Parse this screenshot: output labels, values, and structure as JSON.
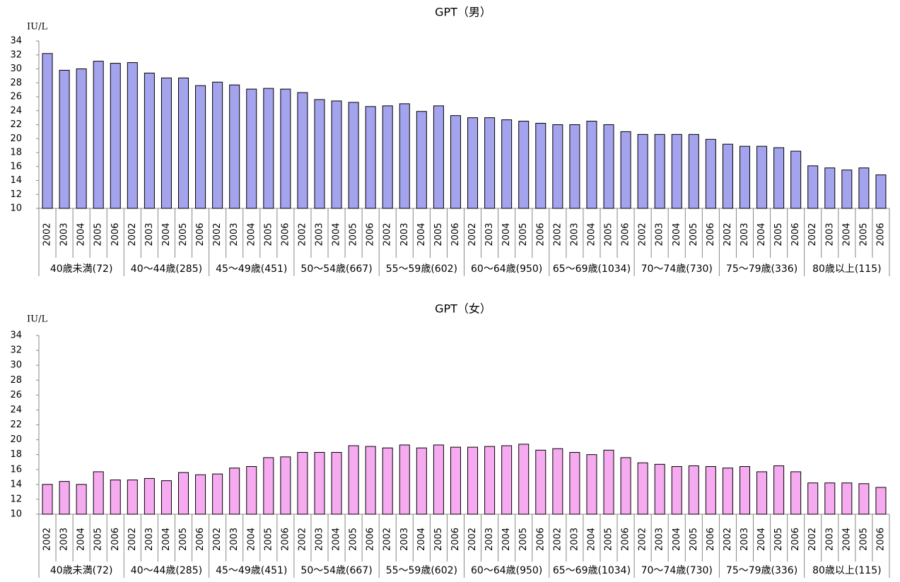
{
  "chart_data": [
    {
      "type": "bar",
      "title": "GPT（男）",
      "y_label": "IU/L",
      "categories": [
        "2002",
        "2003",
        "2004",
        "2005",
        "2006",
        "2002",
        "2003",
        "2004",
        "2005",
        "2006",
        "2002",
        "2003",
        "2004",
        "2005",
        "2006",
        "2002",
        "2003",
        "2004",
        "2005",
        "2006",
        "2002",
        "2003",
        "2004",
        "2005",
        "2006",
        "2002",
        "2003",
        "2004",
        "2005",
        "2006",
        "2002",
        "2003",
        "2004",
        "2005",
        "2006",
        "2002",
        "2003",
        "2004",
        "2005",
        "2006",
        "2002",
        "2003",
        "2004",
        "2005",
        "2006",
        "2002",
        "2003",
        "2004",
        "2005",
        "2006"
      ],
      "groups": [
        "40歳未満(72)",
        "40～44歳(285)",
        "45～49歳(451)",
        "50～54歳(667)",
        "55～59歳(602)",
        "60～64歳(950)",
        "65～69歳(1034)",
        "70～74歳(730)",
        "75～79歳(336)",
        "80歳以上(115)"
      ],
      "values": [
        32.2,
        29.8,
        30.0,
        31.1,
        30.8,
        30.9,
        29.4,
        28.7,
        28.7,
        27.6,
        28.1,
        27.7,
        27.1,
        27.2,
        27.1,
        26.6,
        25.6,
        25.4,
        25.2,
        24.6,
        24.7,
        25.0,
        23.9,
        24.7,
        23.3,
        23.0,
        23.0,
        22.7,
        22.5,
        22.2,
        22.0,
        22.0,
        22.5,
        22.0,
        21.0,
        20.6,
        20.6,
        20.6,
        20.6,
        19.9,
        19.2,
        18.9,
        18.9,
        18.7,
        18.2,
        16.1,
        15.8,
        15.5,
        15.8,
        14.8
      ],
      "color": "#a3a3ee",
      "ylim": [
        10,
        34
      ],
      "yticks": [
        10,
        12,
        14,
        16,
        18,
        20,
        22,
        24,
        26,
        28,
        30,
        32,
        34
      ]
    },
    {
      "type": "bar",
      "title": "GPT（女）",
      "y_label": "IU/L",
      "categories": [
        "2002",
        "2003",
        "2004",
        "2005",
        "2006",
        "2002",
        "2003",
        "2004",
        "2005",
        "2006",
        "2002",
        "2003",
        "2004",
        "2005",
        "2006",
        "2002",
        "2003",
        "2004",
        "2005",
        "2006",
        "2002",
        "2003",
        "2004",
        "2005",
        "2006",
        "2002",
        "2003",
        "2004",
        "2005",
        "2006",
        "2002",
        "2003",
        "2004",
        "2005",
        "2006",
        "2002",
        "2003",
        "2004",
        "2005",
        "2006",
        "2002",
        "2003",
        "2004",
        "2005",
        "2006",
        "2002",
        "2003",
        "2004",
        "2005",
        "2006"
      ],
      "groups": [
        "40歳未満(72)",
        "40～44歳(285)",
        "45～49歳(451)",
        "50～54歳(667)",
        "55～59歳(602)",
        "60～64歳(950)",
        "65～69歳(1034)",
        "70～74歳(730)",
        "75～79歳(336)",
        "80歳以上(115)"
      ],
      "values": [
        14.0,
        14.4,
        14.0,
        15.7,
        14.6,
        14.6,
        14.8,
        14.5,
        15.6,
        15.3,
        15.4,
        16.2,
        16.4,
        17.6,
        17.7,
        18.3,
        18.3,
        18.3,
        19.2,
        19.1,
        18.9,
        19.3,
        18.9,
        19.3,
        19.0,
        19.0,
        19.1,
        19.2,
        19.4,
        18.6,
        18.8,
        18.3,
        18.0,
        18.6,
        17.6,
        16.9,
        16.7,
        16.4,
        16.5,
        16.4,
        16.2,
        16.4,
        15.7,
        16.5,
        15.7,
        14.2,
        14.2,
        14.2,
        14.1,
        13.6
      ],
      "color": "#f6aaef",
      "ylim": [
        10,
        34
      ],
      "yticks": [
        10,
        12,
        14,
        16,
        18,
        20,
        22,
        24,
        26,
        28,
        30,
        32,
        34
      ]
    }
  ]
}
